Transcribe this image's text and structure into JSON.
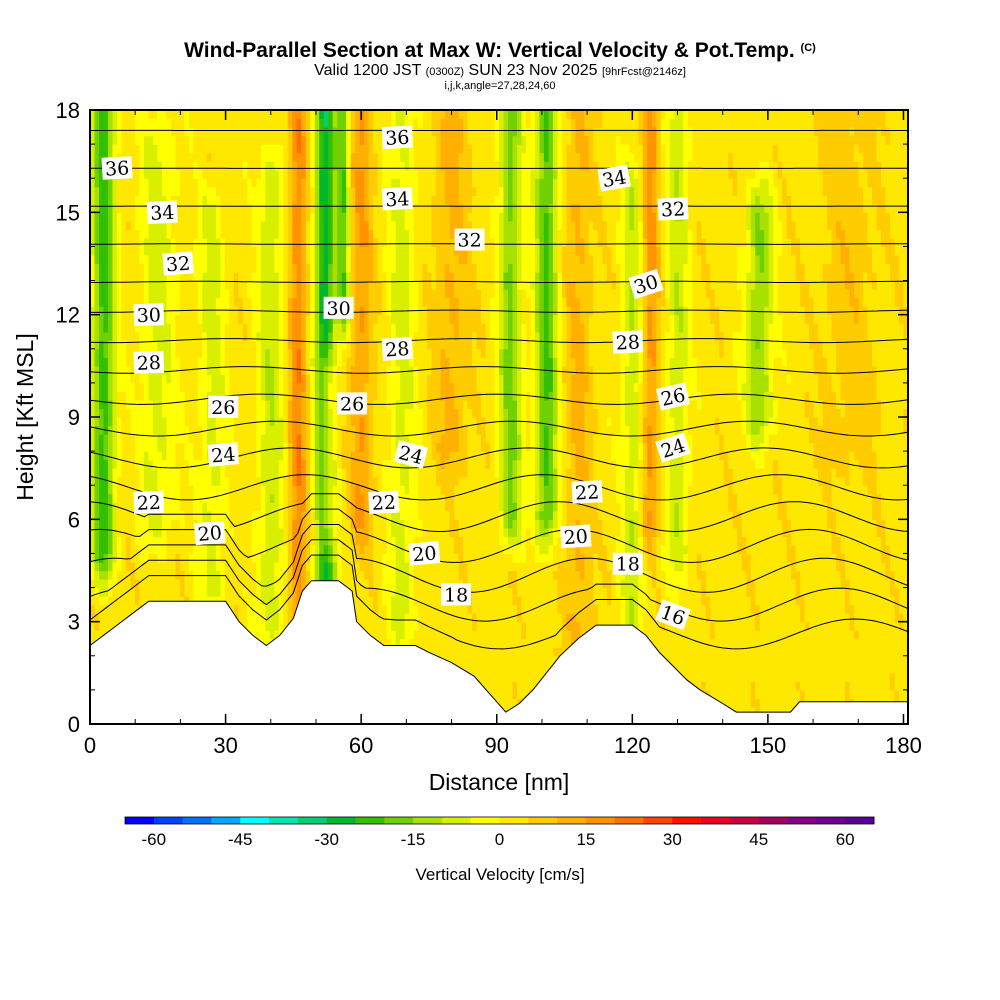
{
  "header": {
    "title": "Wind-Parallel Section at Max W: Vertical Velocity & Pot.Temp.",
    "copyright": "(C)",
    "valid_pre": "Valid 1200 JST",
    "valid_utc": "(0300Z)",
    "valid_date": "SUN 23 Nov 2025",
    "valid_fcst": "[9hrFcst@2146z]",
    "params": "i,j,k,angle=27,28,24,60"
  },
  "chart_data": {
    "type": "heatmap",
    "xlabel": "Distance [nm]",
    "ylabel": "Height [Kft MSL]",
    "xlim": [
      0,
      181
    ],
    "ylim": [
      0,
      18
    ],
    "x_ticks": [
      "0",
      "30",
      "60",
      "90",
      "120",
      "150",
      "180"
    ],
    "y_ticks": [
      "0",
      "3",
      "6",
      "9",
      "12",
      "15",
      "18"
    ],
    "colorbar": {
      "title": "Vertical Velocity [cm/s]",
      "range": [
        -65,
        65
      ],
      "interval": 5,
      "tick_labels": [
        "-60",
        "-45",
        "-30",
        "-15",
        "0",
        "15",
        "30",
        "45",
        "60"
      ],
      "colors": [
        "#0000ff",
        "#0040ff",
        "#0070ff",
        "#00a8ff",
        "#00ffff",
        "#00e8b0",
        "#00d070",
        "#00b830",
        "#33c000",
        "#70d000",
        "#a8e000",
        "#d8f000",
        "#ffff00",
        "#ffe800",
        "#ffcc00",
        "#ffb000",
        "#ff9400",
        "#ff7000",
        "#ff4400",
        "#ff1000",
        "#ee0020",
        "#cc0040",
        "#a80060",
        "#880088",
        "#700090",
        "#580098"
      ]
    },
    "terrain": [
      [
        0,
        2.3
      ],
      [
        3,
        2.6
      ],
      [
        6,
        2.9
      ],
      [
        9,
        3.2
      ],
      [
        13,
        3.6
      ],
      [
        30,
        3.6
      ],
      [
        33,
        3.0
      ],
      [
        36,
        2.6
      ],
      [
        39,
        2.3
      ],
      [
        42,
        2.6
      ],
      [
        45,
        3.1
      ],
      [
        47,
        3.9
      ],
      [
        49,
        4.2
      ],
      [
        55,
        4.2
      ],
      [
        58,
        3.9
      ],
      [
        59,
        3.0
      ],
      [
        62,
        2.6
      ],
      [
        65,
        2.3
      ],
      [
        72,
        2.3
      ],
      [
        75,
        2.1
      ],
      [
        80,
        1.8
      ],
      [
        85,
        1.4
      ],
      [
        89,
        0.8
      ],
      [
        92,
        0.35
      ],
      [
        95,
        0.6
      ],
      [
        98,
        1.0
      ],
      [
        101,
        1.5
      ],
      [
        104,
        2.0
      ],
      [
        108,
        2.5
      ],
      [
        112,
        2.9
      ],
      [
        120,
        2.9
      ],
      [
        123,
        2.6
      ],
      [
        126,
        2.1
      ],
      [
        129,
        1.7
      ],
      [
        132,
        1.3
      ],
      [
        135,
        1.0
      ],
      [
        140,
        0.6
      ],
      [
        143,
        0.35
      ],
      [
        155,
        0.35
      ],
      [
        157,
        0.65
      ],
      [
        181,
        0.65
      ]
    ],
    "w_features": [
      {
        "x": 3,
        "sigma": 2.5,
        "amp": -26,
        "zmin": 5,
        "zmax": 18
      },
      {
        "x": 15,
        "sigma": 4,
        "amp": -10,
        "zmin": 6,
        "zmax": 17
      },
      {
        "x": 27,
        "sigma": 3,
        "amp": -10,
        "zmin": 4,
        "zmax": 15
      },
      {
        "x": 40,
        "sigma": 3,
        "amp": -12,
        "zmin": 3,
        "zmax": 16
      },
      {
        "x": 46,
        "sigma": 2,
        "amp": 16,
        "zmin": 3,
        "zmax": 18
      },
      {
        "x": 52,
        "sigma": 2.2,
        "amp": -32,
        "zmin": 3.5,
        "zmax": 18
      },
      {
        "x": 56,
        "sigma": 1.4,
        "amp": -22,
        "zmin": 12,
        "zmax": 18
      },
      {
        "x": 52.5,
        "sigma": 1.6,
        "amp": 18,
        "zmin": 6,
        "zmax": 10
      },
      {
        "x": 60,
        "sigma": 2.5,
        "amp": 12,
        "zmin": 6,
        "zmax": 18
      },
      {
        "x": 69,
        "sigma": 3,
        "amp": -10,
        "zmin": 3,
        "zmax": 18
      },
      {
        "x": 80,
        "sigma": 4,
        "amp": 8,
        "zmin": 8,
        "zmax": 18
      },
      {
        "x": 93,
        "sigma": 2.5,
        "amp": -20,
        "zmin": 6,
        "zmax": 18
      },
      {
        "x": 101,
        "sigma": 2.5,
        "amp": -24,
        "zmin": 6,
        "zmax": 18
      },
      {
        "x": 108,
        "sigma": 3,
        "amp": 8,
        "zmin": 2,
        "zmax": 18
      },
      {
        "x": 120,
        "sigma": 2.5,
        "amp": -12,
        "zmin": 3,
        "zmax": 16
      },
      {
        "x": 124,
        "sigma": 2,
        "amp": 14,
        "zmin": 6,
        "zmax": 18
      },
      {
        "x": 130,
        "sigma": 2.5,
        "amp": -12,
        "zmin": 5,
        "zmax": 18
      },
      {
        "x": 148,
        "sigma": 3,
        "amp": -18,
        "zmin": 9,
        "zmax": 15
      },
      {
        "x": 168,
        "sigma": 6,
        "amp": 5,
        "zmin": 8,
        "zmax": 18
      }
    ],
    "theta_contours": {
      "levels_min": 16,
      "levels_max": 37,
      "interval": 1,
      "labels": [
        {
          "text": "36",
          "x": 6,
          "z": 16.3,
          "angle": -3
        },
        {
          "text": "34",
          "x": 16,
          "z": 15.0,
          "angle": -3
        },
        {
          "text": "32",
          "x": 19.5,
          "z": 13.5,
          "angle": -4
        },
        {
          "text": "30",
          "x": 13,
          "z": 12.0,
          "angle": -2
        },
        {
          "text": "28",
          "x": 13,
          "z": 10.6,
          "angle": -2
        },
        {
          "text": "26",
          "x": 29.5,
          "z": 9.3,
          "angle": 0
        },
        {
          "text": "24",
          "x": 29.5,
          "z": 7.9,
          "angle": -5
        },
        {
          "text": "22",
          "x": 13,
          "z": 6.5,
          "angle": -2
        },
        {
          "text": "20",
          "x": 26.5,
          "z": 5.6,
          "angle": -5
        },
        {
          "text": "36",
          "x": 68,
          "z": 17.2,
          "angle": -3
        },
        {
          "text": "34",
          "x": 68,
          "z": 15.4,
          "angle": -3
        },
        {
          "text": "32",
          "x": 84,
          "z": 14.2,
          "angle": 0
        },
        {
          "text": "30",
          "x": 55,
          "z": 12.2,
          "angle": 0
        },
        {
          "text": "28",
          "x": 68,
          "z": 11.0,
          "angle": -4
        },
        {
          "text": "26",
          "x": 58,
          "z": 9.4,
          "angle": 0
        },
        {
          "text": "24",
          "x": 71,
          "z": 7.9,
          "angle": 14
        },
        {
          "text": "22",
          "x": 65,
          "z": 6.5,
          "angle": -3
        },
        {
          "text": "20",
          "x": 74,
          "z": 5.0,
          "angle": -5
        },
        {
          "text": "18",
          "x": 81,
          "z": 3.8,
          "angle": 0
        },
        {
          "text": "34",
          "x": 116,
          "z": 16.0,
          "angle": -10
        },
        {
          "text": "32",
          "x": 129,
          "z": 15.1,
          "angle": -3
        },
        {
          "text": "30",
          "x": 123,
          "z": 12.9,
          "angle": -18
        },
        {
          "text": "28",
          "x": 119,
          "z": 11.2,
          "angle": -3
        },
        {
          "text": "26",
          "x": 129,
          "z": 9.6,
          "angle": -13
        },
        {
          "text": "24",
          "x": 129,
          "z": 8.1,
          "angle": -18
        },
        {
          "text": "22",
          "x": 110,
          "z": 6.8,
          "angle": -3
        },
        {
          "text": "20",
          "x": 107.5,
          "z": 5.5,
          "angle": -4
        },
        {
          "text": "18",
          "x": 119,
          "z": 4.7,
          "angle": 0
        },
        {
          "text": "16",
          "x": 129,
          "z": 3.2,
          "angle": 20
        }
      ]
    }
  }
}
